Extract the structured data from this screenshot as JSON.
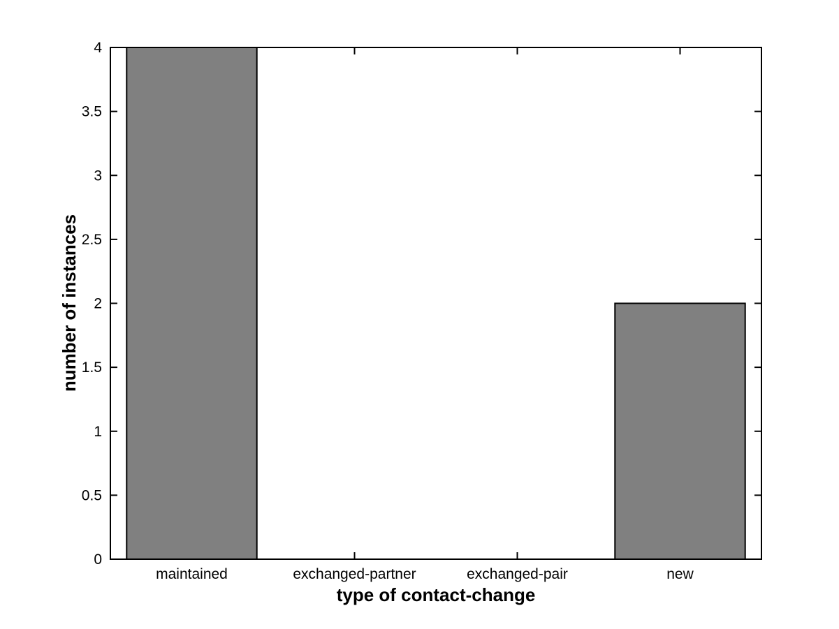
{
  "figure": {
    "background": "#ffffff",
    "axis_color": "#000000",
    "text_color": "#000000"
  },
  "chart_data": {
    "type": "bar",
    "categories": [
      "maintained",
      "exchanged-partner",
      "exchanged-pair",
      "new"
    ],
    "values": [
      4,
      0,
      0,
      2
    ],
    "title": "",
    "xlabel": "type of contact-change",
    "ylabel": "number of instances",
    "ylim": [
      0,
      4
    ],
    "yticks": [
      0,
      0.5,
      1,
      1.5,
      2,
      2.5,
      3,
      3.5,
      4
    ],
    "ytick_labels": [
      "0",
      "0.5",
      "1",
      "1.5",
      "2",
      "2.5",
      "3",
      "3.5",
      "4"
    ],
    "grid": false,
    "legend_position": "none",
    "bar_fill": "#808080",
    "bar_edge": "#000000",
    "bar_width_fraction": 0.8,
    "box": "on",
    "tick_direction": "in"
  }
}
